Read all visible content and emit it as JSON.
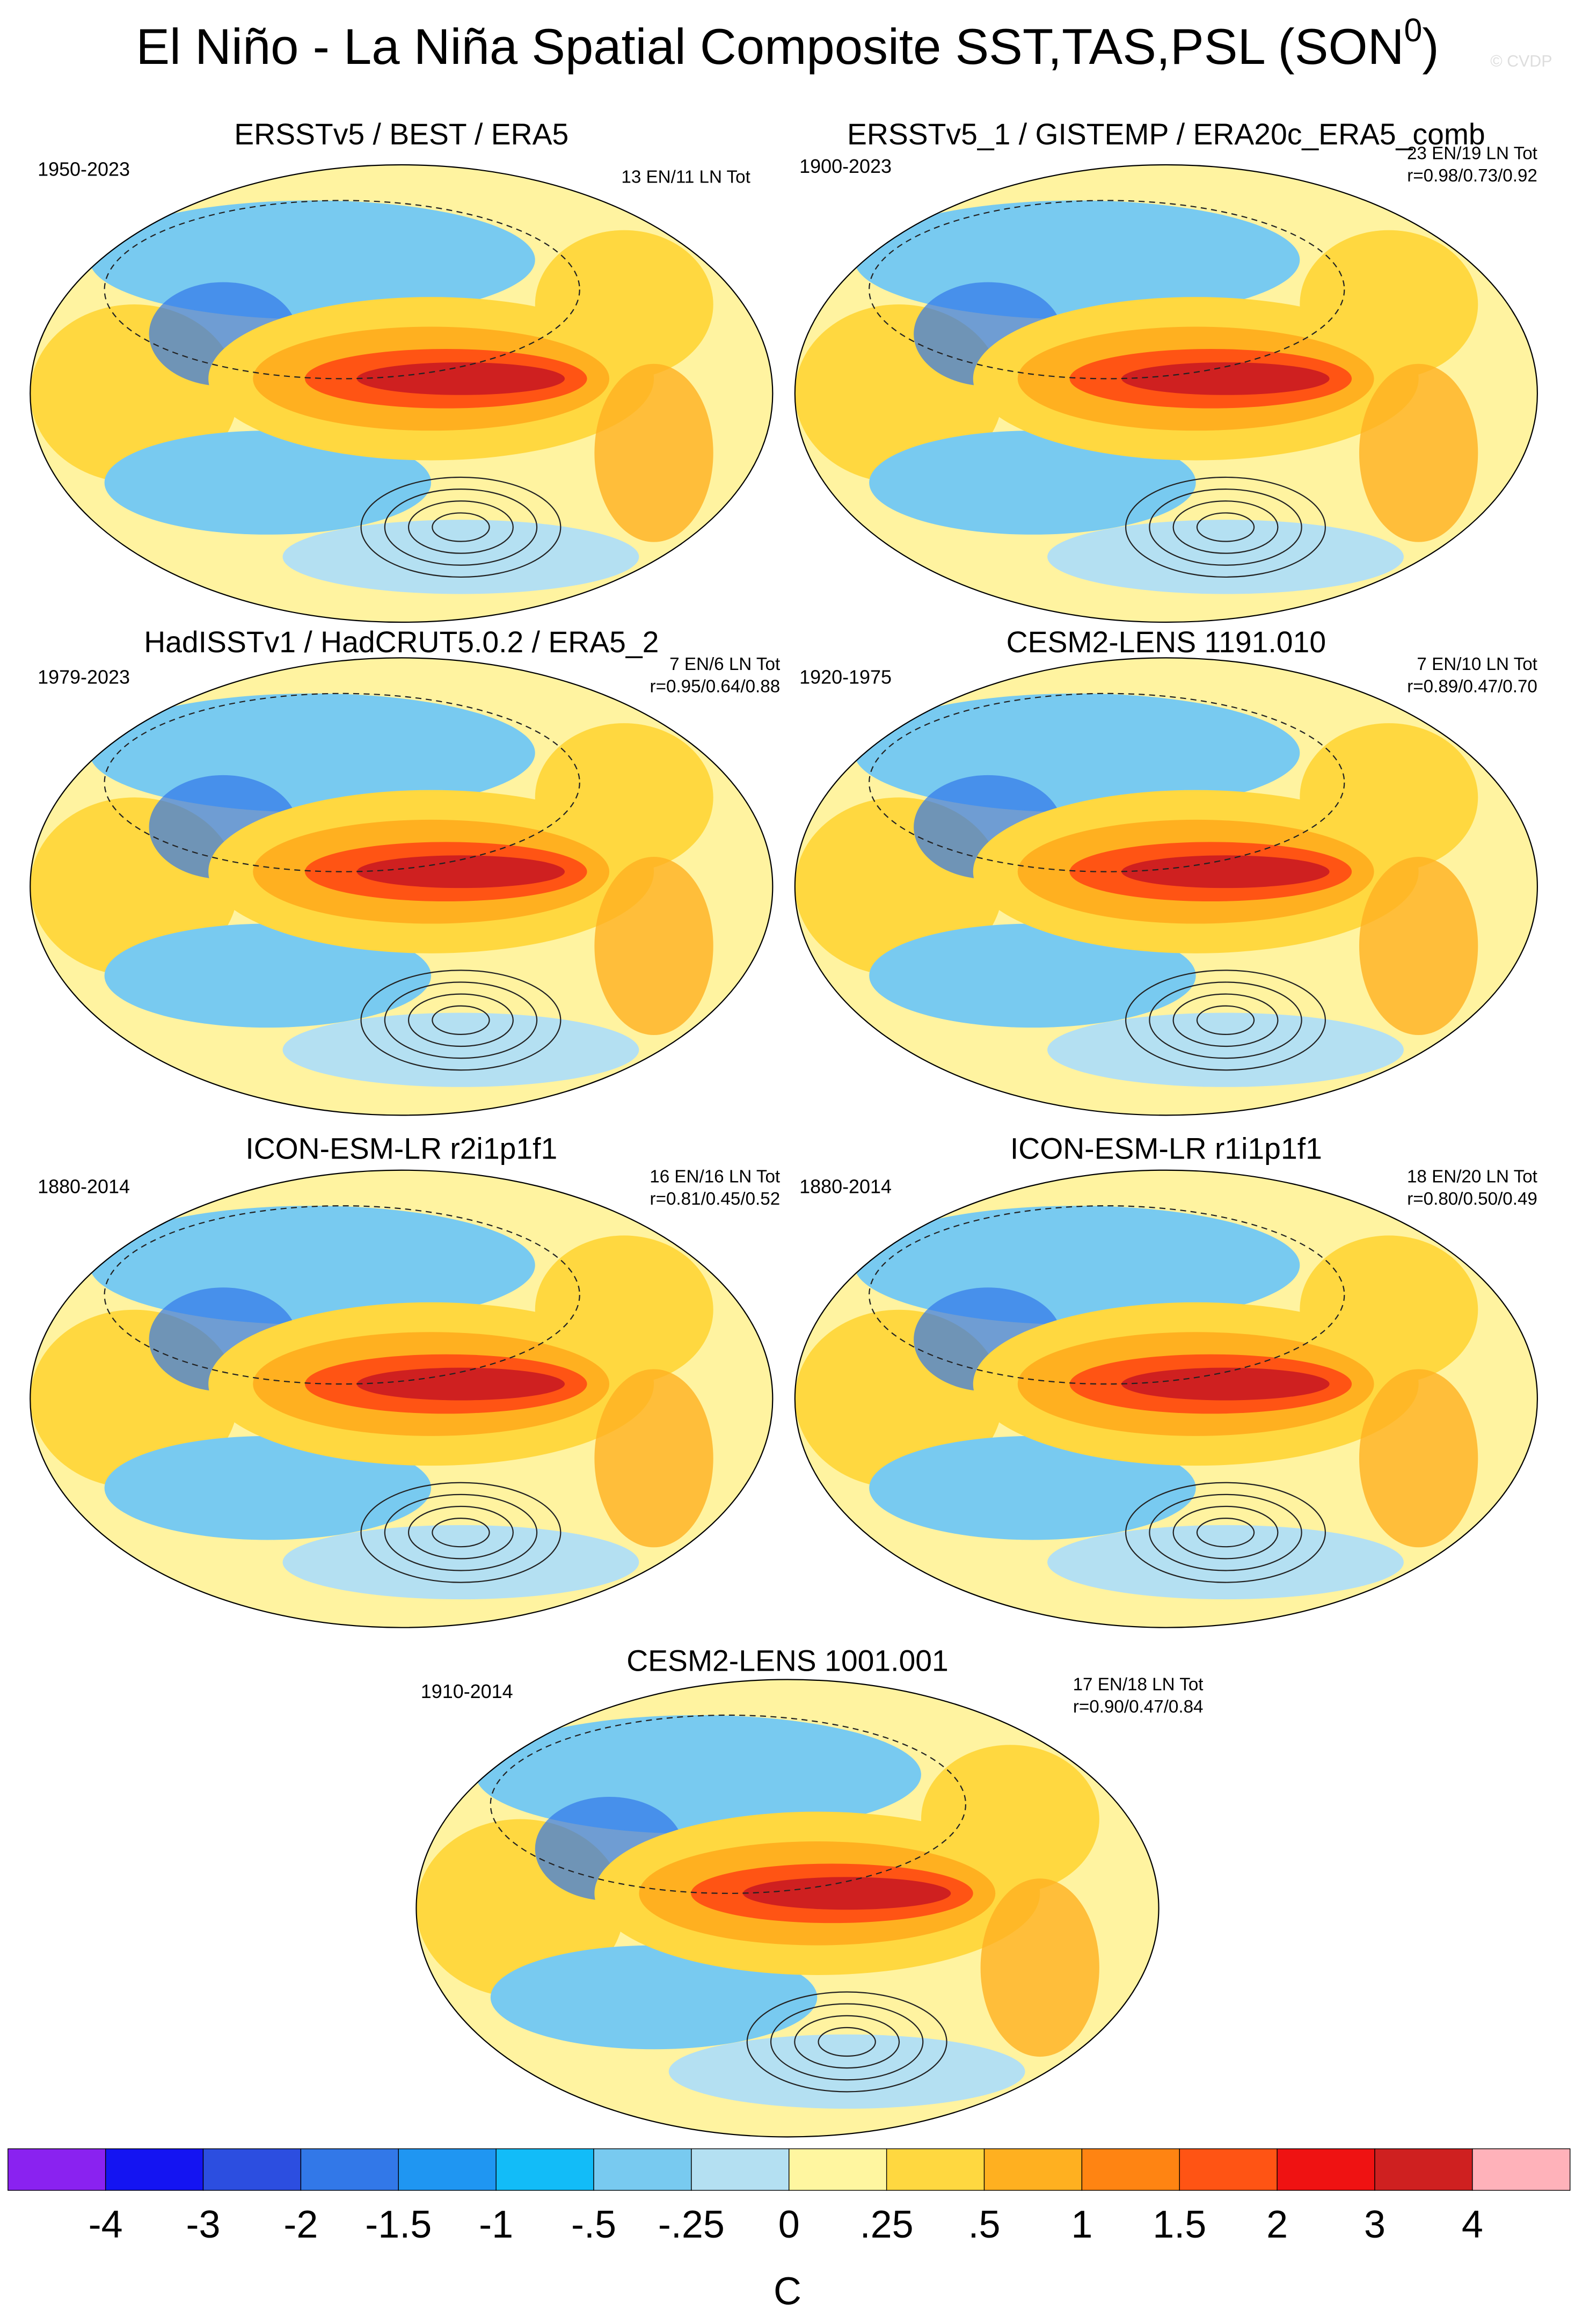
{
  "header": {
    "title": "El Niño - La Niña Spatial Composite SST,TAS,PSL (SON",
    "title_superscript": "0",
    "title_end": ")",
    "watermark": "© CVDP"
  },
  "panels": [
    {
      "title": "ERSSTv5 / BEST / ERA5",
      "period": "1950-2023",
      "stats": [
        "13 EN/11 LN Tot"
      ]
    },
    {
      "title": "ERSSTv5_1 / GISTEMP / ERA20c_ERA5_comb",
      "period": "1900-2023",
      "stats": [
        "23 EN/19 LN Tot",
        "r=0.98/0.73/0.92"
      ]
    },
    {
      "title": "HadISSTv1 / HadCRUT5.0.2 / ERA5_2",
      "period": "1979-2023",
      "stats": [
        "7 EN/6 LN Tot",
        "r=0.95/0.64/0.88"
      ]
    },
    {
      "title": "CESM2-LENS 1191.010",
      "period": "1920-1975",
      "stats": [
        "7 EN/10 LN Tot",
        "r=0.89/0.47/0.70"
      ]
    },
    {
      "title": "ICON-ESM-LR r2i1p1f1",
      "period": "1880-2014",
      "stats": [
        "16 EN/16 LN Tot",
        "r=0.81/0.45/0.52"
      ]
    },
    {
      "title": "ICON-ESM-LR r1i1p1f1",
      "period": "1880-2014",
      "stats": [
        "18 EN/20 LN Tot",
        "r=0.80/0.50/0.49"
      ]
    },
    {
      "title": "CESM2-LENS 1001.001",
      "period": "1910-2014",
      "stats": [
        "17 EN/18 LN Tot",
        "r=0.90/0.47/0.84"
      ]
    }
  ],
  "colorbar": {
    "colors": [
      "#8a22f0",
      "#1414f2",
      "#2c4ee0",
      "#3278e8",
      "#1f96f2",
      "#12bcf8",
      "#78caf0",
      "#b4e0f2",
      "#fff6a0",
      "#ffd840",
      "#ffb020",
      "#ff8412",
      "#ff5414",
      "#ef1212",
      "#cf2020",
      "#ffb2ba"
    ],
    "labels": [
      "-4",
      "-3",
      "-2",
      "-1.5",
      "-1",
      "-.5",
      "-.25",
      "0",
      ".25",
      ".5",
      "1",
      "1.5",
      "2",
      "3",
      "4"
    ],
    "unit": "C"
  }
}
